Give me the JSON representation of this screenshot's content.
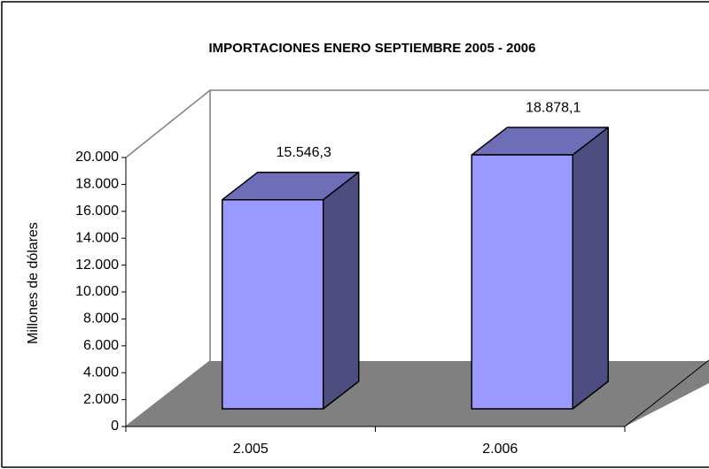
{
  "chart_data": {
    "type": "bar3d",
    "title": "IMPORTACIONES ENERO SEPTIEMBRE 2005 - 2006",
    "ylabel": "Millones de dólares",
    "categories": [
      "2.005",
      "2.006"
    ],
    "values": [
      15546.3,
      18878.1
    ],
    "value_labels": [
      "15.546,3",
      "18.878,1"
    ],
    "color": "#9999ff",
    "ylim": [
      0,
      20000
    ],
    "yticks": [
      0,
      {
        "value": 2000,
        "label": "2.000"
      },
      {
        "value": 4000,
        "label": "4.000"
      },
      {
        "value": 6000,
        "label": "6.000"
      },
      {
        "value": 8000,
        "label": "8.000"
      },
      {
        "value": 10000,
        "label": "10.000"
      },
      {
        "value": 12000,
        "label": "12.000"
      },
      {
        "value": 14000,
        "label": "14.000"
      },
      {
        "value": 16000,
        "label": "16.000"
      },
      {
        "value": 18000,
        "label": "18.000"
      },
      {
        "value": 20000,
        "label": "20.000"
      }
    ],
    "grid": false
  }
}
